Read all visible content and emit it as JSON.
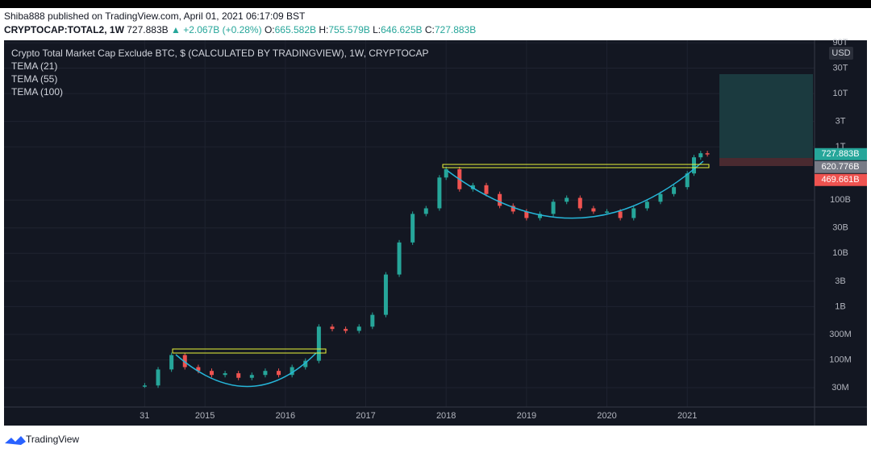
{
  "header": {
    "publisher": "Shiba888 published on TradingView.com, April 01, 2021 06:17:09 BST",
    "symbol": "CRYPTOCAP:TOTAL2, 1W",
    "last": "727.883B",
    "change": "▲ +2.067B (+0.28%)",
    "ohlc": [
      {
        "key": "O:",
        "value": "665.582B"
      },
      {
        "key": "H:",
        "value": "755.579B"
      },
      {
        "key": "L:",
        "value": "646.625B"
      },
      {
        "key": "C:",
        "value": "727.883B"
      }
    ]
  },
  "footer": {
    "brand": "TradingView"
  },
  "chart_data": {
    "type": "candle",
    "title": "Crypto Total Market Cap Exclude BTC, $ (CALCULATED BY TRADINGVIEW), 1W, CRYPTOCAP",
    "indicators": [
      "TEMA (21)",
      "TEMA (55)",
      "TEMA (100)"
    ],
    "currency": "USD",
    "log_scale": true,
    "grid": true,
    "up_color": "#26a69a",
    "down_color": "#ef5350",
    "x": [
      "2014-04",
      "2014-06",
      "2014-08",
      "2014-10",
      "2014-12",
      "2015-02",
      "2015-04",
      "2015-06",
      "2015-08",
      "2015-10",
      "2015-12",
      "2016-02",
      "2016-04",
      "2016-06",
      "2016-08",
      "2016-10",
      "2016-12",
      "2017-02",
      "2017-04",
      "2017-06",
      "2017-08",
      "2017-10",
      "2017-12",
      "2018-01",
      "2018-03",
      "2018-05",
      "2018-07",
      "2018-09",
      "2018-11",
      "2019-01",
      "2019-03",
      "2019-05",
      "2019-07",
      "2019-09",
      "2019-11",
      "2020-01",
      "2020-03",
      "2020-05",
      "2020-07",
      "2020-09",
      "2020-11",
      "2021-01",
      "2021-02",
      "2021-03",
      "2021-04"
    ],
    "values": [
      33000000,
      66000000,
      123000000,
      73000000,
      62000000,
      52000000,
      56000000,
      46000000,
      52000000,
      62000000,
      52000000,
      73000000,
      96000000,
      420000000,
      380000000,
      350000000,
      420000000,
      700000000,
      4000000000,
      16000000000,
      55000000000,
      70000000000,
      265000000000,
      380000000000,
      160000000000,
      190000000000,
      130000000000,
      78000000000,
      61000000000,
      46000000000,
      55000000000,
      93000000000,
      110000000000,
      70000000000,
      61000000000,
      61000000000,
      46000000000,
      70000000000,
      93000000000,
      130000000000,
      175000000000,
      316000000000,
      635000000000,
      757000000000,
      727883000000
    ],
    "price_labels": [
      {
        "value": 727883000000,
        "label": "727.883B",
        "color": "#26a69a"
      },
      {
        "value": 620776000000,
        "label": "620.776B",
        "color": "#787b86"
      },
      {
        "value": 469661000000,
        "label": "469.661B",
        "color": "#ef5350"
      }
    ],
    "xlim": [
      "2012-07",
      "2022-08"
    ],
    "xticks": [
      {
        "value": "2014-03-31",
        "label": "31"
      },
      {
        "value": "2015-01-01",
        "label": "2015"
      },
      {
        "value": "2016-01-01",
        "label": "2016"
      },
      {
        "value": "2017-01-01",
        "label": "2017"
      },
      {
        "value": "2018-01-01",
        "label": "2018"
      },
      {
        "value": "2019-01-01",
        "label": "2019"
      },
      {
        "value": "2020-01-01",
        "label": "2020"
      },
      {
        "value": "2021-01-01",
        "label": "2021"
      }
    ],
    "ylim": [
      13000000,
      100000000000000
    ],
    "yticks": [
      {
        "value": 90000000000000,
        "label": "90T"
      },
      {
        "value": 30000000000000,
        "label": "30T"
      },
      {
        "value": 10000000000000,
        "label": "10T"
      },
      {
        "value": 3000000000000,
        "label": "3T"
      },
      {
        "value": 1000000000000,
        "label": "1T"
      },
      {
        "value": 100000000000,
        "label": "100B"
      },
      {
        "value": 30000000000,
        "label": "30B"
      },
      {
        "value": 10000000000,
        "label": "10B"
      },
      {
        "value": 3000000000,
        "label": "3B"
      },
      {
        "value": 1000000000,
        "label": "1B"
      },
      {
        "value": 300000000,
        "label": "300M"
      },
      {
        "value": 100000000,
        "label": "100M"
      },
      {
        "value": 30000000,
        "label": "30M"
      }
    ]
  }
}
